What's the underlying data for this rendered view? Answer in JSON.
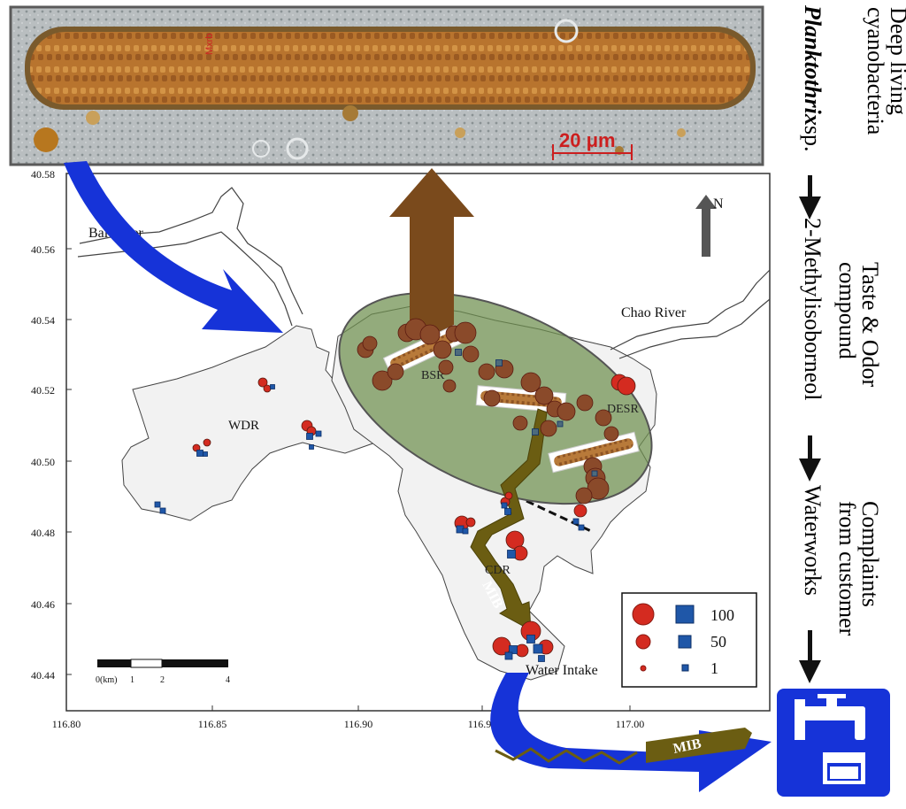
{
  "figure": {
    "micrograph": {
      "scale_bar_label": "20 μm",
      "edge_text": "Mxrb"
    },
    "map": {
      "y_ticks": [
        "40.58",
        "40.56",
        "40.54",
        "40.52",
        "40.50",
        "40.48",
        "40.46",
        "40.44"
      ],
      "x_ticks": [
        "116.80",
        "116.85",
        "116.90",
        "116.95",
        "117.00"
      ],
      "labels": {
        "bai_river": "Bai River",
        "chao_river": "Chao River",
        "wdr": "WDR",
        "bsr": "BSR",
        "desr": "DESR",
        "cdr": "CDR",
        "water_intake": "Water Intake",
        "mib_stream": "MIB",
        "north": "N"
      },
      "scalebar": {
        "origin": "0(km)",
        "t1": "1",
        "t2": "2",
        "t4": "4"
      },
      "legend": {
        "values": [
          "100",
          "50",
          "1"
        ]
      },
      "colors": {
        "circle": "#d42b20",
        "square": "#1f57a8",
        "ellipse": "#6e8f4e",
        "land": "#f2f2f2",
        "brown_arrow": "#7a4a1c",
        "blue_arrow": "#1633d8",
        "mib_arrow": "#6b5d12"
      }
    },
    "right_panel": {
      "col1": [
        "Deep living",
        "cyanobacteria"
      ],
      "col2_italic": "Planktothrix",
      "col2_rest": "sp.",
      "col3": "2-Methylisoborneol",
      "col4": [
        "Taste & Odor",
        "compound"
      ],
      "col5": "Waterworks",
      "col6": [
        "Complaints",
        "from customer"
      ]
    },
    "bottom_arrow_label": "MIB"
  }
}
